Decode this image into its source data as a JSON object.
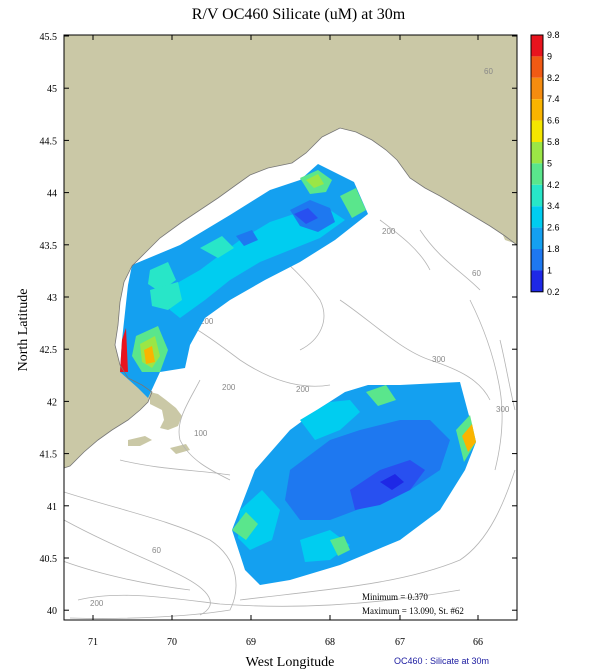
{
  "title": "R/V OC460 Silicate (uM) at 30m",
  "axes": {
    "xlabel": "West Longitude",
    "ylabel": "North Latitude",
    "x_ticks": [
      "71",
      "70",
      "69",
      "68",
      "67",
      "66"
    ],
    "y_ticks": [
      "45.5",
      "45",
      "44.5",
      "44",
      "43.5",
      "43",
      "42.5",
      "42",
      "41.5",
      "41",
      "40.5",
      "40"
    ]
  },
  "colorbar": {
    "ticks": [
      "9.8",
      "9",
      "8.2",
      "7.4",
      "6.6",
      "5.8",
      "5",
      "4.2",
      "3.4",
      "2.6",
      "1.8",
      "1",
      "0.2"
    ],
    "colors": [
      "#e8141e",
      "#f05a14",
      "#f58c10",
      "#fab400",
      "#f5e600",
      "#9be646",
      "#5ae68c",
      "#28e6c8",
      "#00cdf0",
      "#14a0f0",
      "#1e78f0",
      "#2850f0",
      "#1e28e6"
    ]
  },
  "contour_labels": {
    "c1": "60",
    "c2": "200",
    "c3": "200",
    "c4": "60",
    "c5": "300",
    "c6": "200",
    "c7": "200",
    "c8": "100",
    "c9": "300",
    "c10": "60",
    "c11": "200"
  },
  "stats": {
    "minimum": "Minimum = 0.370",
    "maximum": "Maximum = 13.090, St. #62"
  },
  "footer": "OC460 : Silicate at 30m",
  "colors": {
    "land": "#cac8a6",
    "coast": "#777777",
    "bathy": "#b4b4b4"
  }
}
